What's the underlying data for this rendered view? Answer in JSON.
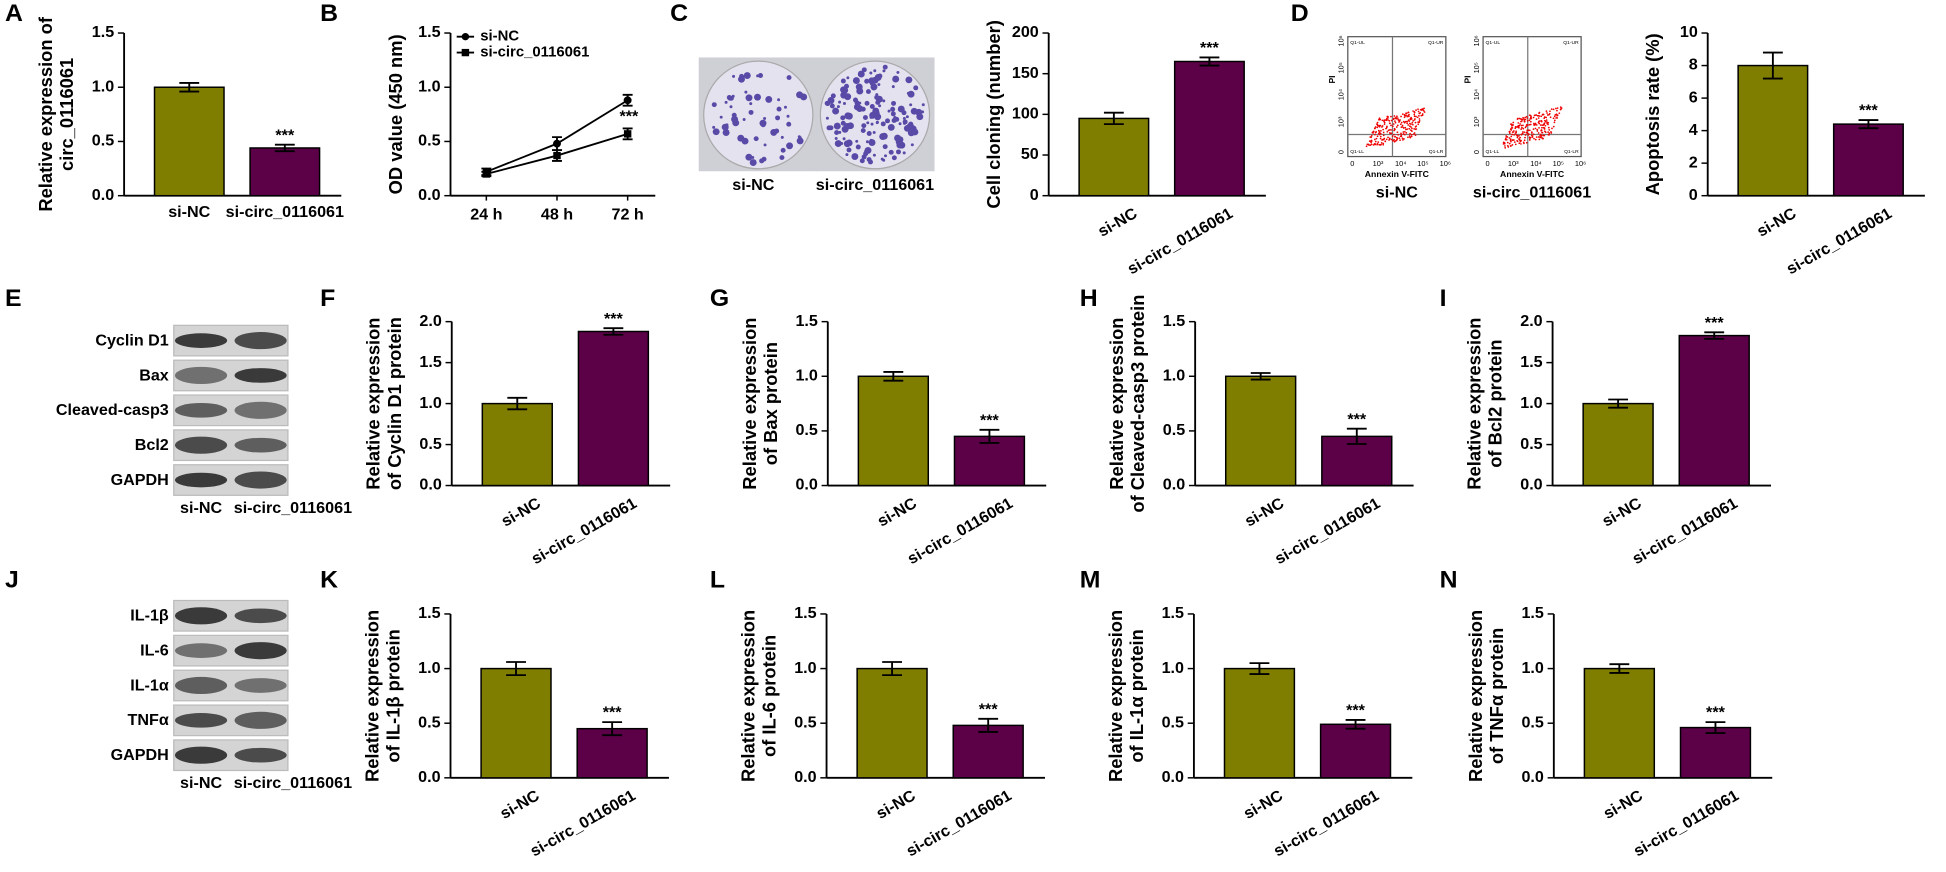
{
  "panels": [
    "A",
    "B",
    "C",
    "D",
    "E",
    "F",
    "G",
    "H",
    "I",
    "J",
    "K",
    "L",
    "M",
    "N"
  ],
  "colony_images": {
    "labels": [
      "si-NC",
      "si-circ_0116061"
    ]
  },
  "flow_plots": {
    "labels": [
      "si-NC",
      "si-circ_0116061"
    ],
    "xlabel": "Annexin V-FITC",
    "ylabel": "PI",
    "ticks": [
      "0",
      "10³",
      "10⁴",
      "10⁵",
      "10⁶"
    ],
    "quadrants": [
      "Q1-UL",
      "Q1-UR",
      "Q1-LL",
      "Q1-LR"
    ]
  },
  "blots": [
    {
      "rows": [
        "Cyclin D1",
        "Bax",
        "Cleaved-casp3",
        "Bcl2",
        "GAPDH"
      ],
      "lanes": [
        "si-NC",
        "si-circ_0116061"
      ]
    },
    {
      "rows": [
        "IL-1β",
        "IL-6",
        "IL-1α",
        "TNFα",
        "GAPDH"
      ],
      "lanes": [
        "si-NC",
        "si-circ_0116061"
      ]
    }
  ],
  "chart_data": [
    {
      "type": "bar",
      "ylabel": [
        "Relative expression of",
        "circ_0116061"
      ],
      "categories": [
        "si-NC",
        "si-circ_0116061"
      ],
      "values": [
        1.0,
        0.44
      ],
      "errors": [
        0.04,
        0.03
      ],
      "colors": [
        "#807e00",
        "#5c0048"
      ],
      "annotation": "***",
      "ylim": [
        0,
        1.5
      ],
      "yticks": [
        {
          "value": 0,
          "label": "0.0"
        },
        0.5,
        {
          "value": 1,
          "label": "1.0"
        },
        1.5
      ]
    },
    {
      "type": "line",
      "ylabel": [
        "OD value (450 nm)"
      ],
      "categories": [
        "24 h",
        "48 h",
        "72 h"
      ],
      "series": [
        {
          "name": "si-NC",
          "color": "#000000",
          "marker": "circle",
          "values": [
            0.22,
            0.48,
            0.88
          ],
          "errors": [
            0.03,
            0.06,
            0.05
          ]
        },
        {
          "name": "si-circ_0116061",
          "color": "#000000",
          "marker": "square",
          "values": [
            0.2,
            0.37,
            0.57
          ],
          "errors": [
            0.02,
            0.05,
            0.05
          ]
        }
      ],
      "annotation": "***",
      "ylim": [
        0,
        1.5
      ],
      "yticks": [
        {
          "value": 0,
          "label": "0.0"
        },
        0.5,
        {
          "value": 1,
          "label": "1.0"
        },
        1.5
      ]
    },
    {
      "type": "bar",
      "ylabel": [
        "Cell cloning (number)"
      ],
      "categories": [
        "si-NC",
        "si-circ_0116061"
      ],
      "values": [
        95,
        165
      ],
      "errors": [
        7,
        5
      ],
      "colors": [
        "#807e00",
        "#5c0048"
      ],
      "annotation": "***",
      "ylim": [
        0,
        200
      ],
      "yticks": [
        0,
        50,
        100,
        150,
        200
      ]
    },
    {
      "type": "bar",
      "ylabel": [
        "Apoptosis rate (%)"
      ],
      "categories": [
        "si-NC",
        "si-circ_0116061"
      ],
      "values": [
        8.0,
        4.4
      ],
      "errors": [
        0.8,
        0.25
      ],
      "colors": [
        "#807e00",
        "#5c0048"
      ],
      "annotation": "***",
      "ylim": [
        0,
        10
      ],
      "yticks": [
        0,
        2,
        4,
        6,
        8,
        10
      ]
    },
    {
      "type": "bar",
      "ylabel": [
        "Relative expression",
        "of Cyclin D1 protein"
      ],
      "categories": [
        "si-NC",
        "si-circ_0116061"
      ],
      "values": [
        1.0,
        1.88
      ],
      "errors": [
        0.07,
        0.04
      ],
      "colors": [
        "#807e00",
        "#5c0048"
      ],
      "annotation": "***",
      "ylim": [
        0,
        2
      ],
      "yticks": [
        {
          "value": 0,
          "label": "0.0"
        },
        0.5,
        {
          "value": 1,
          "label": "1.0"
        },
        1.5,
        {
          "value": 2,
          "label": "2.0"
        }
      ]
    },
    {
      "type": "bar",
      "ylabel": [
        "Relative expression",
        "of Bax protein"
      ],
      "categories": [
        "si-NC",
        "si-circ_0116061"
      ],
      "values": [
        1.0,
        0.45
      ],
      "errors": [
        0.04,
        0.06
      ],
      "colors": [
        "#807e00",
        "#5c0048"
      ],
      "annotation": "***",
      "ylim": [
        0,
        1.5
      ],
      "yticks": [
        {
          "value": 0,
          "label": "0.0"
        },
        0.5,
        {
          "value": 1,
          "label": "1.0"
        },
        1.5
      ]
    },
    {
      "type": "bar",
      "ylabel": [
        "Relative expression",
        "of Cleaved-casp3 protein"
      ],
      "categories": [
        "si-NC",
        "si-circ_0116061"
      ],
      "values": [
        1.0,
        0.45
      ],
      "errors": [
        0.03,
        0.07
      ],
      "colors": [
        "#807e00",
        "#5c0048"
      ],
      "annotation": "***",
      "ylim": [
        0,
        1.5
      ],
      "yticks": [
        {
          "value": 0,
          "label": "0.0"
        },
        0.5,
        {
          "value": 1,
          "label": "1.0"
        },
        1.5
      ]
    },
    {
      "type": "bar",
      "ylabel": [
        "Relative expression",
        "of Bcl2 protein"
      ],
      "categories": [
        "si-NC",
        "si-circ_0116061"
      ],
      "values": [
        1.0,
        1.83
      ],
      "errors": [
        0.05,
        0.04
      ],
      "colors": [
        "#807e00",
        "#5c0048"
      ],
      "annotation": "***",
      "ylim": [
        0,
        2
      ],
      "yticks": [
        {
          "value": 0,
          "label": "0.0"
        },
        0.5,
        {
          "value": 1,
          "label": "1.0"
        },
        1.5,
        {
          "value": 2,
          "label": "2.0"
        }
      ]
    },
    {
      "type": "bar",
      "ylabel": [
        "Relative expression",
        "of IL-1β protein"
      ],
      "categories": [
        "si-NC",
        "si-circ_0116061"
      ],
      "values": [
        1.0,
        0.45
      ],
      "errors": [
        0.06,
        0.06
      ],
      "colors": [
        "#807e00",
        "#5c0048"
      ],
      "annotation": "***",
      "ylim": [
        0,
        1.5
      ],
      "yticks": [
        {
          "value": 0,
          "label": "0.0"
        },
        0.5,
        {
          "value": 1,
          "label": "1.0"
        },
        1.5
      ]
    },
    {
      "type": "bar",
      "ylabel": [
        "Relative expression",
        "of IL-6 protein"
      ],
      "categories": [
        "si-NC",
        "si-circ_0116061"
      ],
      "values": [
        1.0,
        0.48
      ],
      "errors": [
        0.06,
        0.06
      ],
      "colors": [
        "#807e00",
        "#5c0048"
      ],
      "annotation": "***",
      "ylim": [
        0,
        1.5
      ],
      "yticks": [
        {
          "value": 0,
          "label": "0.0"
        },
        0.5,
        {
          "value": 1,
          "label": "1.0"
        },
        1.5
      ]
    },
    {
      "type": "bar",
      "ylabel": [
        "Relative expression",
        "of IL-1α protein"
      ],
      "categories": [
        "si-NC",
        "si-circ_0116061"
      ],
      "values": [
        1.0,
        0.49
      ],
      "errors": [
        0.05,
        0.04
      ],
      "colors": [
        "#807e00",
        "#5c0048"
      ],
      "annotation": "***",
      "ylim": [
        0,
        1.5
      ],
      "yticks": [
        {
          "value": 0,
          "label": "0.0"
        },
        0.5,
        {
          "value": 1,
          "label": "1.0"
        },
        1.5
      ]
    },
    {
      "type": "bar",
      "ylabel": [
        "Relative expression",
        "of TNFα protein"
      ],
      "categories": [
        "si-NC",
        "si-circ_0116061"
      ],
      "values": [
        1.0,
        0.46
      ],
      "errors": [
        0.04,
        0.05
      ],
      "colors": [
        "#807e00",
        "#5c0048"
      ],
      "annotation": "***",
      "ylim": [
        0,
        1.5
      ],
      "yticks": [
        {
          "value": 0,
          "label": "0.0"
        },
        0.5,
        {
          "value": 1,
          "label": "1.0"
        },
        1.5
      ]
    }
  ]
}
